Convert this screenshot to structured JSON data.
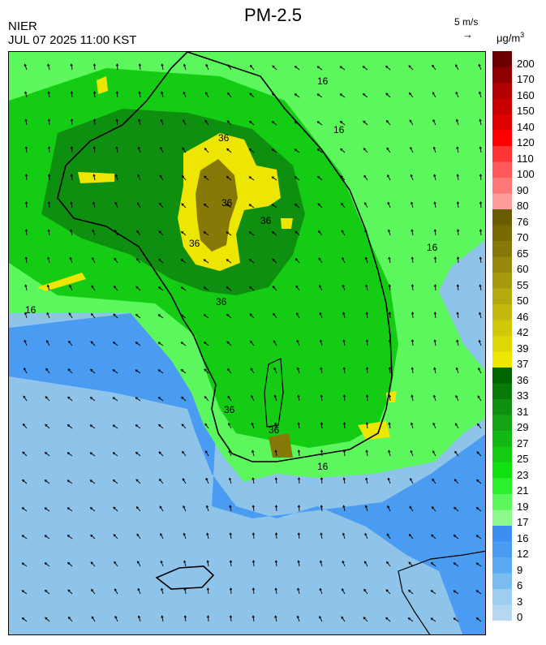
{
  "header": {
    "title": "PM-2.5",
    "agency": "NIER",
    "timestamp": "JUL 07 2025 11:00 KST",
    "wind_reference": "5 m/s",
    "wind_reference_arrow": "→",
    "unit_prefix": "μg/m",
    "unit_exponent": "3"
  },
  "contour_labels": [
    "16",
    "16",
    "16",
    "16",
    "16",
    "36",
    "36",
    "36",
    "36",
    "36",
    "36",
    "36"
  ],
  "colorbar": {
    "levels": [
      {
        "label": "200",
        "color": "#6b0000"
      },
      {
        "label": "170",
        "color": "#8f0000"
      },
      {
        "label": "160",
        "color": "#b00000"
      },
      {
        "label": "150",
        "color": "#c80000"
      },
      {
        "label": "140",
        "color": "#e00000"
      },
      {
        "label": "120",
        "color": "#ff0000"
      },
      {
        "label": "110",
        "color": "#ff3434"
      },
      {
        "label": "100",
        "color": "#ff5a5a"
      },
      {
        "label": "90",
        "color": "#ff7878"
      },
      {
        "label": "80",
        "color": "#ff9c9c"
      },
      {
        "label": "76",
        "color": "#695c00"
      },
      {
        "label": "70",
        "color": "#786a05"
      },
      {
        "label": "65",
        "color": "#877908"
      },
      {
        "label": "60",
        "color": "#96880b"
      },
      {
        "label": "55",
        "color": "#a6990e"
      },
      {
        "label": "50",
        "color": "#b5a910"
      },
      {
        "label": "46",
        "color": "#c4b80e"
      },
      {
        "label": "42",
        "color": "#d2c80a"
      },
      {
        "label": "39",
        "color": "#dfd606"
      },
      {
        "label": "37",
        "color": "#ede502"
      },
      {
        "label": "36",
        "color": "#006400"
      },
      {
        "label": "33",
        "color": "#087a08"
      },
      {
        "label": "31",
        "color": "#0f8f0f"
      },
      {
        "label": "29",
        "color": "#13a313"
      },
      {
        "label": "27",
        "color": "#14b814"
      },
      {
        "label": "25",
        "color": "#14cc14"
      },
      {
        "label": "23",
        "color": "#10e010"
      },
      {
        "label": "21",
        "color": "#2bf02b"
      },
      {
        "label": "19",
        "color": "#5cf75c"
      },
      {
        "label": "17",
        "color": "#8cfb8c"
      },
      {
        "label": "16",
        "color": "#3c8ff0"
      },
      {
        "label": "12",
        "color": "#4a9cf2"
      },
      {
        "label": "9",
        "color": "#5aa9f3"
      },
      {
        "label": "6",
        "color": "#7bbcf0"
      },
      {
        "label": "3",
        "color": "#9ecdf0"
      },
      {
        "label": "0",
        "color": "#b5d8f0"
      }
    ]
  },
  "colors": {
    "sea_clean": "#8fc4ea",
    "sea_low": "#4a9cf2",
    "green_light": "#5cf75c",
    "green_mid": "#14cc14",
    "green_dark": "#0f8f0f",
    "yellow": "#ede502",
    "olive": "#877908",
    "coastline": "#000000",
    "arrow": "#000000"
  }
}
